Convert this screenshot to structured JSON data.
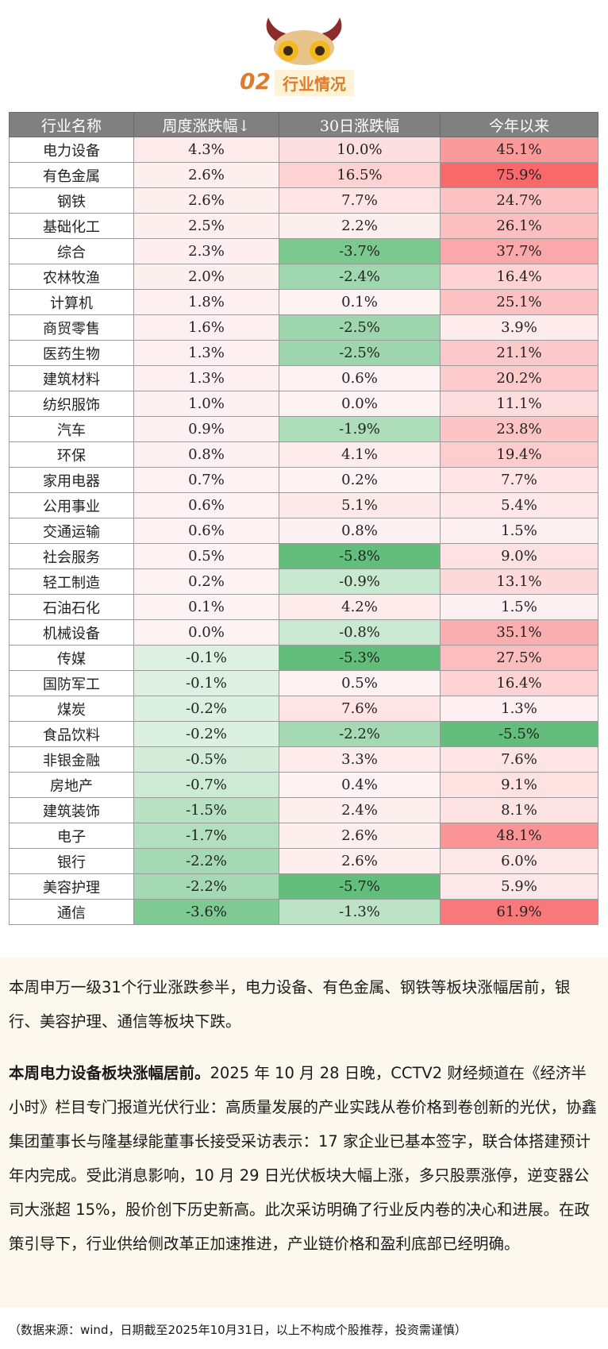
{
  "header": {
    "number": "02",
    "title": "行业情况"
  },
  "table": {
    "columns": [
      "行业名称",
      "周度涨跌幅↓",
      "30日涨跌幅",
      "今年以来"
    ],
    "rows": [
      [
        "电力设备",
        "4.3%",
        "10.0%",
        "45.1%"
      ],
      [
        "有色金属",
        "2.6%",
        "16.5%",
        "75.9%"
      ],
      [
        "钢铁",
        "2.6%",
        "7.7%",
        "24.7%"
      ],
      [
        "基础化工",
        "2.5%",
        "2.2%",
        "26.1%"
      ],
      [
        "综合",
        "2.3%",
        "-3.7%",
        "37.7%"
      ],
      [
        "农林牧渔",
        "2.0%",
        "-2.4%",
        "16.4%"
      ],
      [
        "计算机",
        "1.8%",
        "0.1%",
        "25.1%"
      ],
      [
        "商贸零售",
        "1.6%",
        "-2.5%",
        "3.9%"
      ],
      [
        "医药生物",
        "1.3%",
        "-2.5%",
        "21.1%"
      ],
      [
        "建筑材料",
        "1.3%",
        "0.6%",
        "20.2%"
      ],
      [
        "纺织服饰",
        "1.0%",
        "0.0%",
        "11.1%"
      ],
      [
        "汽车",
        "0.9%",
        "-1.9%",
        "23.8%"
      ],
      [
        "环保",
        "0.8%",
        "4.1%",
        "19.4%"
      ],
      [
        "家用电器",
        "0.7%",
        "0.2%",
        "7.7%"
      ],
      [
        "公用事业",
        "0.6%",
        "5.1%",
        "5.4%"
      ],
      [
        "交通运输",
        "0.6%",
        "0.8%",
        "1.5%"
      ],
      [
        "社会服务",
        "0.5%",
        "-5.8%",
        "9.0%"
      ],
      [
        "轻工制造",
        "0.2%",
        "-0.9%",
        "13.1%"
      ],
      [
        "石油石化",
        "0.1%",
        "4.2%",
        "1.5%"
      ],
      [
        "机械设备",
        "0.0%",
        "-0.8%",
        "35.1%"
      ],
      [
        "传媒",
        "-0.1%",
        "-5.3%",
        "27.5%"
      ],
      [
        "国防军工",
        "-0.1%",
        "0.5%",
        "16.4%"
      ],
      [
        "煤炭",
        "-0.2%",
        "7.6%",
        "1.3%"
      ],
      [
        "食品饮料",
        "-0.2%",
        "-2.2%",
        "-5.5%"
      ],
      [
        "非银金融",
        "-0.5%",
        "3.3%",
        "7.6%"
      ],
      [
        "房地产",
        "-0.7%",
        "0.4%",
        "9.1%"
      ],
      [
        "建筑装饰",
        "-1.5%",
        "2.4%",
        "8.1%"
      ],
      [
        "电子",
        "-1.7%",
        "2.6%",
        "48.1%"
      ],
      [
        "银行",
        "-2.2%",
        "2.6%",
        "6.0%"
      ],
      [
        "美容护理",
        "-2.2%",
        "-5.7%",
        "5.9%"
      ],
      [
        "通信",
        "-3.6%",
        "-1.3%",
        "61.9%"
      ]
    ]
  },
  "paragraphs": [
    {
      "text": "本周申万一级31个行业涨跌参半，电力设备、有色金属、钢铁等板块涨幅居前，银行、美容护理、通信等板块下跌。"
    },
    {
      "lead": "本周电力设备板块涨幅居前。",
      "text": "2025 年 10 月 28 日晚，CCTV2 财经频道在《经济半小时》栏目专门报道光伏行业：高质量发展的产业实践从卷价格到卷创新的光伏，协鑫集团董事长与隆基绿能董事长接受采访表示：17 家企业已基本签字，联合体搭建预计年内完成。受此消息影响，10 月 29 日光伏板块大幅上涨，多只股票涨停，逆变器公司大涨超 15%，股价创下历史新高。此次采访明确了行业反内卷的决心和进展。在政策引导下，行业供给侧改革正加速推进，产业链价格和盈利底部已经明确。"
    }
  ],
  "footer": "（数据来源：wind，日期截至2025年10月31日，以上不构成个股推荐，投资需谨慎）"
}
